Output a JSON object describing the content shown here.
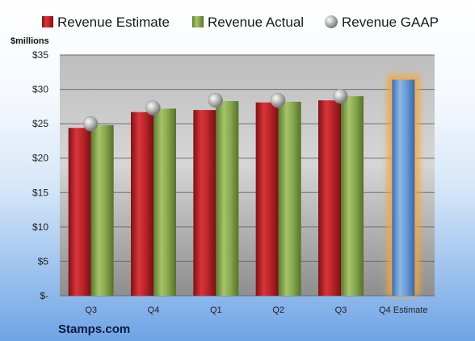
{
  "chart_data": {
    "type": "bar",
    "unit_label": "$millions",
    "categories": [
      "Q3",
      "Q4",
      "Q1",
      "Q2",
      "Q3",
      "Q4 Estimate"
    ],
    "series": [
      {
        "name": "Revenue Estimate",
        "kind": "bar",
        "color": "#c0262b",
        "values": [
          24.4,
          26.7,
          27.0,
          28.1,
          28.4,
          null
        ]
      },
      {
        "name": "Revenue Actual",
        "kind": "bar",
        "color": "#8cac52",
        "values": [
          24.8,
          27.2,
          28.3,
          28.2,
          29.0,
          null
        ]
      },
      {
        "name": "Revenue GAAP",
        "kind": "marker",
        "color": "#bdbdbd",
        "values": [
          25.0,
          27.3,
          28.4,
          28.4,
          29.0,
          null
        ]
      }
    ],
    "highlight": {
      "category": "Q4 Estimate",
      "value": 31.4,
      "color": "#6d9fd8",
      "glow_color": "#f3a640"
    },
    "y_ticks": [
      "$-",
      "$5",
      "$10",
      "$15",
      "$20",
      "$25",
      "$30",
      "$35"
    ],
    "ylim": [
      0,
      35
    ],
    "grid": true,
    "legend_position": "top"
  },
  "brand": "Stamps.com"
}
